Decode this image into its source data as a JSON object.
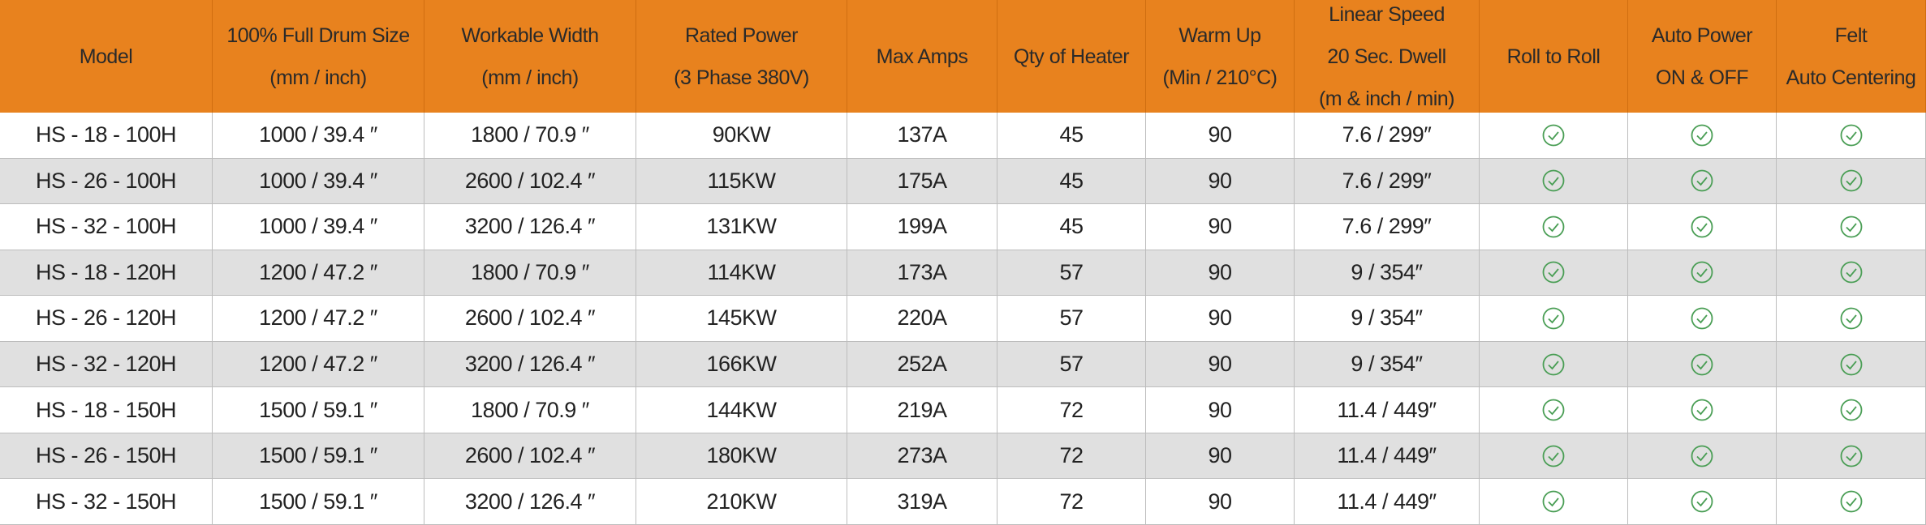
{
  "table": {
    "header": [
      [
        "Model"
      ],
      [
        "100% Full Drum Size",
        "(mm / inch)"
      ],
      [
        "Workable Width",
        "(mm / inch)"
      ],
      [
        "Rated Power",
        "(3 Phase 380V)"
      ],
      [
        "Max Amps"
      ],
      [
        "Qty of Heater"
      ],
      [
        "Warm Up",
        "(Min / 210°C)"
      ],
      [
        "Linear Speed",
        "20 Sec. Dwell",
        "(m & inch / min)"
      ],
      [
        "Roll to Roll"
      ],
      [
        "Auto Power",
        "ON & OFF"
      ],
      [
        "Felt",
        "Auto Centering"
      ]
    ],
    "rows": [
      [
        "HS - 18 - 100H",
        "1000 / 39.4 ″",
        "1800 / 70.9 ″",
        "90KW",
        "137A",
        "45",
        "90",
        "7.6 / 299″"
      ],
      [
        "HS - 26 - 100H",
        "1000 / 39.4 ″",
        "2600 / 102.4 ″",
        "115KW",
        "175A",
        "45",
        "90",
        "7.6 / 299″"
      ],
      [
        "HS - 32 - 100H",
        "1000 / 39.4 ″",
        "3200 / 126.4 ″",
        "131KW",
        "199A",
        "45",
        "90",
        "7.6 / 299″"
      ],
      [
        "HS - 18 - 120H",
        "1200 / 47.2 ″",
        "1800 / 70.9 ″",
        "114KW",
        "173A",
        "57",
        "90",
        "9 / 354″"
      ],
      [
        "HS - 26 - 120H",
        "1200 / 47.2 ″",
        "2600 / 102.4 ″",
        "145KW",
        "220A",
        "57",
        "90",
        "9 / 354″"
      ],
      [
        "HS - 32 - 120H",
        "1200 / 47.2 ″",
        "3200 / 126.4 ″",
        "166KW",
        "252A",
        "57",
        "90",
        "9 / 354″"
      ],
      [
        "HS - 18 - 150H",
        "1500 / 59.1 ″",
        "1800 / 70.9 ″",
        "144KW",
        "219A",
        "72",
        "90",
        "11.4 / 449″"
      ],
      [
        "HS - 26 - 150H",
        "1500 / 59.1 ″",
        "2600 / 102.4 ″",
        "180KW",
        "273A",
        "72",
        "90",
        "11.4 / 449″"
      ],
      [
        "HS - 32 - 150H",
        "1500 / 59.1 ″",
        "3200 / 126.4 ″",
        "210KW",
        "319A",
        "72",
        "90",
        "11.4 / 449″"
      ]
    ]
  }
}
